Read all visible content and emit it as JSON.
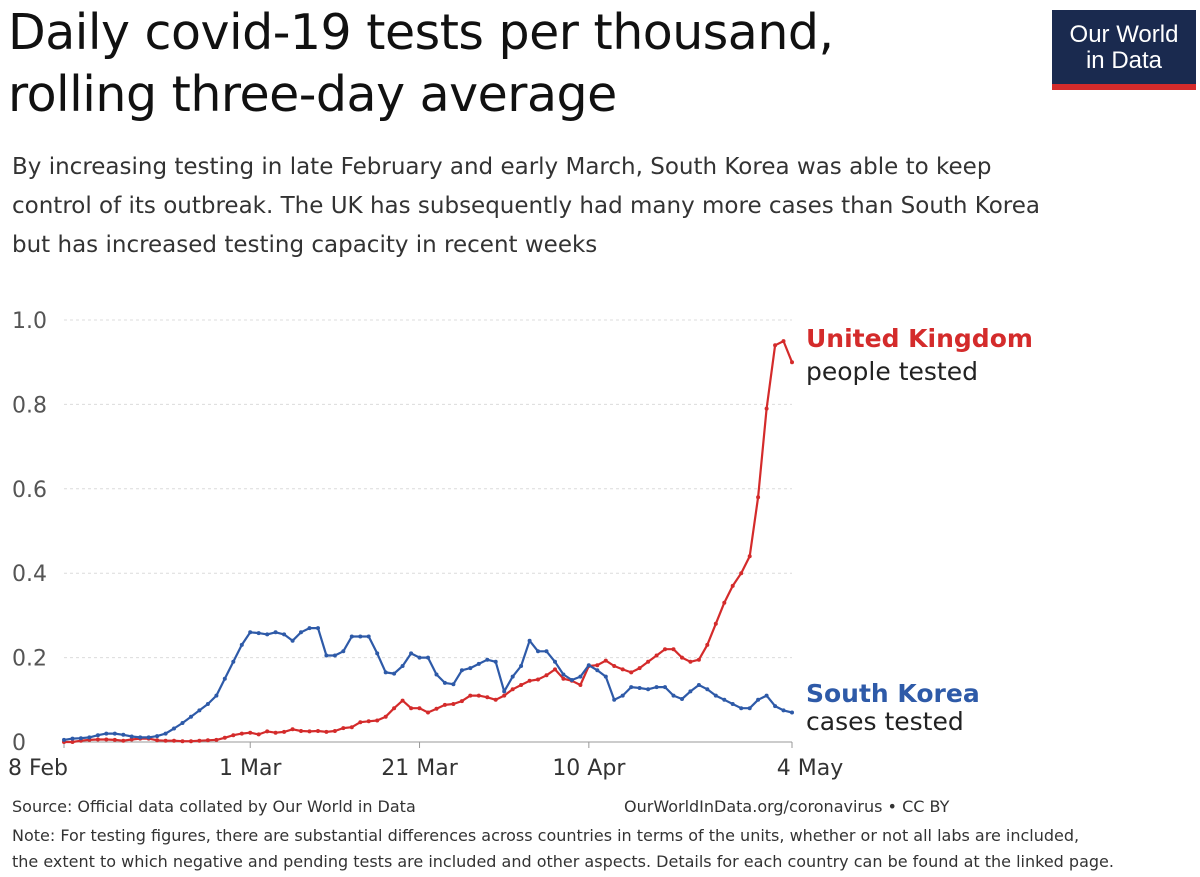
{
  "header": {
    "title_lines": [
      "Daily covid-19 tests per thousand,",
      "rolling three-day average"
    ],
    "subtitle_lines": [
      "By increasing testing in late February and early March, South Korea was able to keep",
      "control of its outbreak. The UK has subsequently had many more cases than South Korea",
      "but has increased testing capacity in recent weeks"
    ]
  },
  "logo": {
    "line1": "Our World",
    "line2": "in Data"
  },
  "footer": {
    "source": "Source: Official data collated by Our World in Data",
    "source_right": "OurWorldInData.org/coronavirus • CC BY",
    "note_lines": [
      "Note: For testing figures, there are substantial differences across countries in terms of the units, whether or not all labs are included,",
      "the extent to which negative and pending tests are included and other aspects. Details for each country can be found at the linked page."
    ]
  },
  "chart_data": {
    "type": "line",
    "title": "Daily covid-19 tests per thousand, rolling three-day average",
    "xlabel": "",
    "ylabel": "",
    "x_start": "8 Feb",
    "x_end": "4 May",
    "x_ticks": [
      {
        "day": 0,
        "label": "8 Feb"
      },
      {
        "day": 22,
        "label": "1 Mar"
      },
      {
        "day": 42,
        "label": "21 Mar"
      },
      {
        "day": 62,
        "label": "10 Apr"
      },
      {
        "day": 86,
        "label": "4 May"
      }
    ],
    "y_ticks": [
      {
        "value": 0,
        "label": "0"
      },
      {
        "value": 0.2,
        "label": "0.2"
      },
      {
        "value": 0.4,
        "label": "0.4"
      },
      {
        "value": 0.6,
        "label": "0.6"
      },
      {
        "value": 0.8,
        "label": "0.8"
      },
      {
        "value": 1.0,
        "label": "1.0"
      }
    ],
    "ylim": [
      0,
      1.0
    ],
    "xlim": [
      0,
      86
    ],
    "grid": true,
    "series": [
      {
        "name": "United Kingdom",
        "sublabel": "people tested",
        "color": "#d42b2b",
        "values": [
          0,
          0,
          0.003,
          0.005,
          0.006,
          0.006,
          0.005,
          0.003,
          0.006,
          0.008,
          0.008,
          0.004,
          0.003,
          0.003,
          0.002,
          0.002,
          0.003,
          0.004,
          0.005,
          0.01,
          0.016,
          0.02,
          0.022,
          0.018,
          0.025,
          0.022,
          0.024,
          0.03,
          0.026,
          0.025,
          0.026,
          0.024,
          0.026,
          0.033,
          0.035,
          0.047,
          0.049,
          0.051,
          0.06,
          0.08,
          0.098,
          0.08,
          0.08,
          0.07,
          0.079,
          0.088,
          0.09,
          0.097,
          0.11,
          0.11,
          0.106,
          0.1,
          0.11,
          0.125,
          0.135,
          0.145,
          0.148,
          0.158,
          0.172,
          0.15,
          0.145,
          0.135,
          0.18,
          0.182,
          0.193,
          0.18,
          0.172,
          0.165,
          0.175,
          0.19,
          0.205,
          0.22,
          0.22,
          0.2,
          0.19,
          0.195,
          0.23,
          0.28,
          0.33,
          0.37,
          0.4,
          0.44,
          0.58,
          0.79,
          0.94,
          0.95,
          0.9
        ]
      },
      {
        "name": "South Korea",
        "sublabel": "cases tested",
        "color": "#2e5aa8",
        "values": [
          0.005,
          0.008,
          0.009,
          0.011,
          0.016,
          0.02,
          0.02,
          0.017,
          0.013,
          0.011,
          0.011,
          0.014,
          0.02,
          0.032,
          0.045,
          0.06,
          0.075,
          0.09,
          0.11,
          0.15,
          0.19,
          0.23,
          0.26,
          0.258,
          0.255,
          0.26,
          0.255,
          0.24,
          0.26,
          0.27,
          0.27,
          0.205,
          0.205,
          0.215,
          0.25,
          0.25,
          0.25,
          0.21,
          0.165,
          0.162,
          0.18,
          0.21,
          0.2,
          0.2,
          0.16,
          0.14,
          0.137,
          0.17,
          0.175,
          0.185,
          0.195,
          0.19,
          0.12,
          0.155,
          0.18,
          0.24,
          0.215,
          0.215,
          0.19,
          0.16,
          0.147,
          0.155,
          0.182,
          0.17,
          0.155,
          0.1,
          0.11,
          0.13,
          0.128,
          0.125,
          0.13,
          0.13,
          0.11,
          0.102,
          0.12,
          0.135,
          0.125,
          0.11,
          0.1,
          0.09,
          0.08,
          0.08,
          0.1,
          0.11,
          0.085,
          0.075,
          0.07
        ]
      }
    ]
  }
}
